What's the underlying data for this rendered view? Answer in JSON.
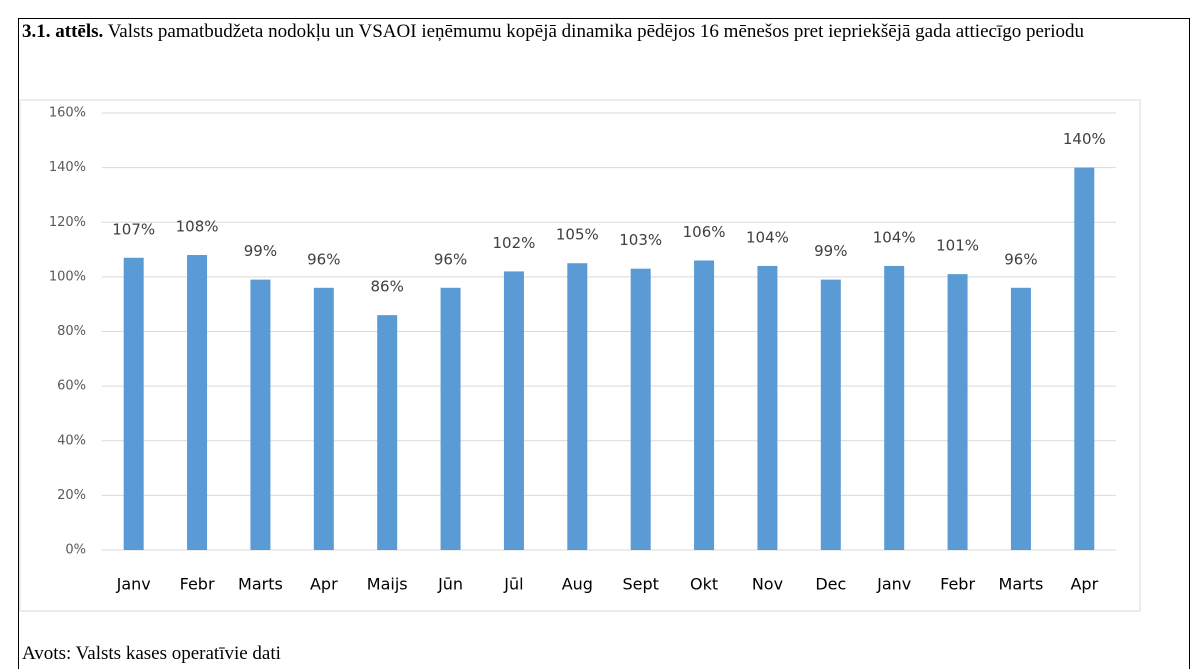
{
  "chart_data": {
    "type": "bar",
    "title_label": "3.1. attēls.",
    "title": "Valsts pamatbudžeta nodokļu  un VSAOI ieņēmumu kopējā dinamika pēdējos 16 mēnešos pret iepriekšējā gada attiecīgo periodu",
    "source": "Avots: Valsts kases operatīvie dati",
    "categories": [
      "Janv",
      "Febr",
      "Marts",
      "Apr",
      "Maijs",
      "Jūn",
      "Jūl",
      "Aug",
      "Sept",
      "Okt",
      "Nov",
      "Dec",
      "Janv",
      "Febr",
      "Marts",
      "Apr"
    ],
    "values": [
      107,
      108,
      99,
      96,
      86,
      96,
      102,
      105,
      103,
      106,
      104,
      99,
      104,
      101,
      96,
      140
    ],
    "value_labels": [
      "107%",
      "108%",
      "99%",
      "96%",
      "86%",
      "96%",
      "102%",
      "105%",
      "103%",
      "106%",
      "104%",
      "99%",
      "104%",
      "101%",
      "96%",
      "140%"
    ],
    "color": "#5b9bd5",
    "ylim": [
      0,
      160
    ],
    "yticks": [
      {
        "value": 0,
        "label": "0%"
      },
      {
        "value": 20,
        "label": "20%"
      },
      {
        "value": 40,
        "label": "40%"
      },
      {
        "value": 60,
        "label": "60%"
      },
      {
        "value": 80,
        "label": "80%"
      },
      {
        "value": 100,
        "label": "100%"
      },
      {
        "value": 120,
        "label": "120%"
      },
      {
        "value": 140,
        "label": "140%"
      },
      {
        "value": 160,
        "label": "160%"
      }
    ],
    "grid": true
  }
}
